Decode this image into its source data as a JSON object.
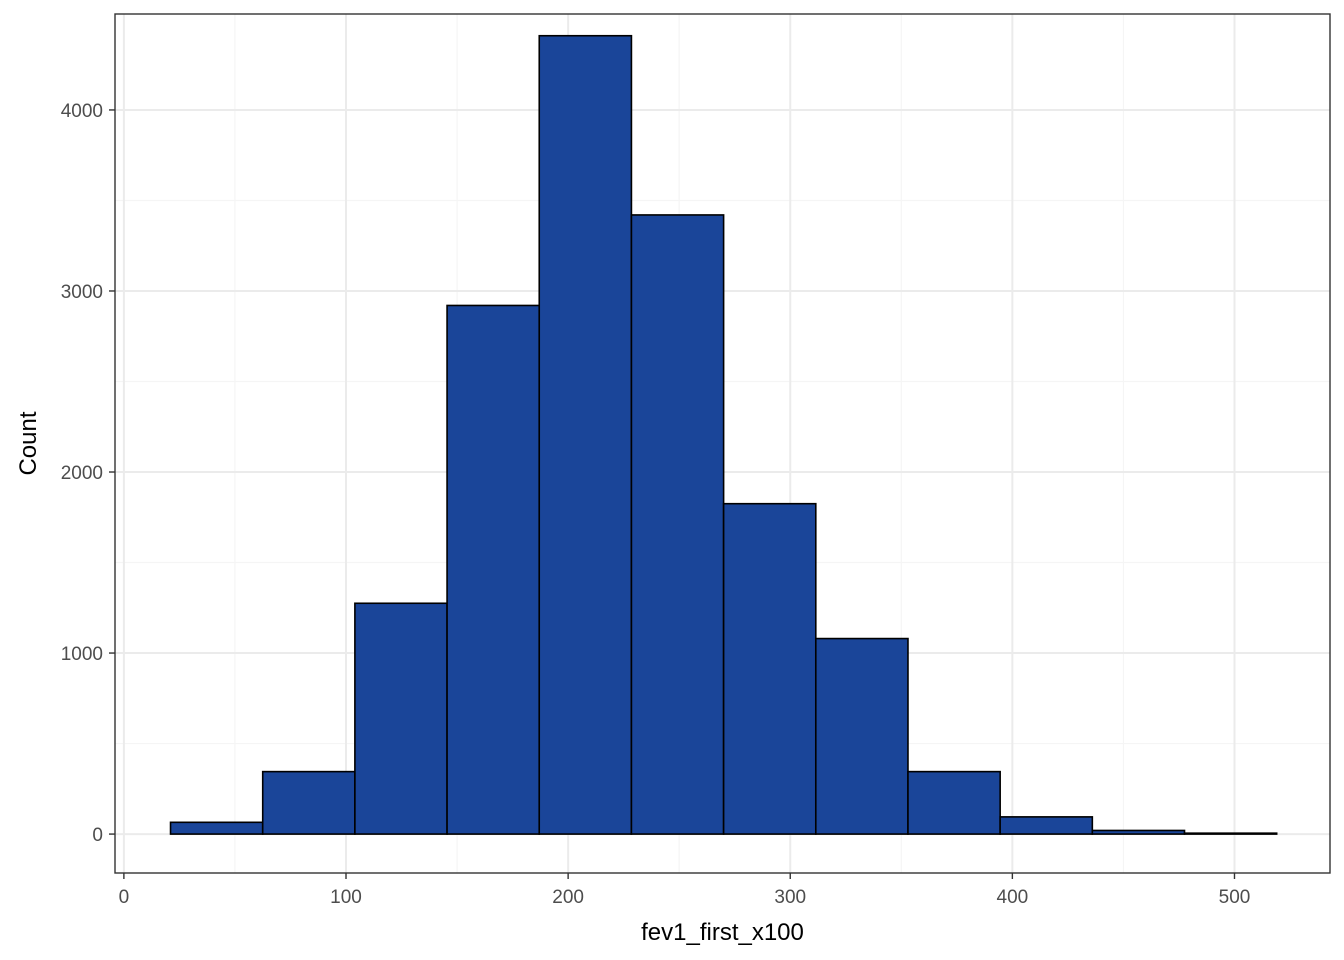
{
  "chart_data": {
    "type": "bar",
    "subtype": "histogram",
    "xlabel": "fev1_first_x100",
    "ylabel": "Count",
    "xlim": [
      -4,
      543
    ],
    "ylim": [
      -215,
      4530
    ],
    "x_ticks": [
      0,
      100,
      200,
      300,
      400,
      500
    ],
    "x_minor_ticks": [
      50,
      150,
      250,
      350,
      450
    ],
    "y_ticks": [
      0,
      1000,
      2000,
      3000,
      4000
    ],
    "y_minor_ticks": [
      500,
      1500,
      2500,
      3500
    ],
    "grid": true,
    "bins": [
      {
        "x0": 21,
        "x1": 62.5,
        "count": 65
      },
      {
        "x0": 62.5,
        "x1": 104,
        "count": 345
      },
      {
        "x0": 104,
        "x1": 145.5,
        "count": 1275
      },
      {
        "x0": 145.5,
        "x1": 187,
        "count": 2920
      },
      {
        "x0": 187,
        "x1": 228.5,
        "count": 4410
      },
      {
        "x0": 228.5,
        "x1": 270,
        "count": 3420
      },
      {
        "x0": 270,
        "x1": 311.5,
        "count": 1825
      },
      {
        "x0": 311.5,
        "x1": 353,
        "count": 1080
      },
      {
        "x0": 353,
        "x1": 394.5,
        "count": 345
      },
      {
        "x0": 394.5,
        "x1": 436,
        "count": 95
      },
      {
        "x0": 436,
        "x1": 477.5,
        "count": 20
      },
      {
        "x0": 477.5,
        "x1": 519,
        "count": 5
      }
    ],
    "colors": {
      "bar_fill": "#1a4599",
      "bar_stroke": "#000000",
      "grid_major": "#ebebeb",
      "grid_minor": "#f5f5f5",
      "panel_border": "#333333"
    }
  }
}
